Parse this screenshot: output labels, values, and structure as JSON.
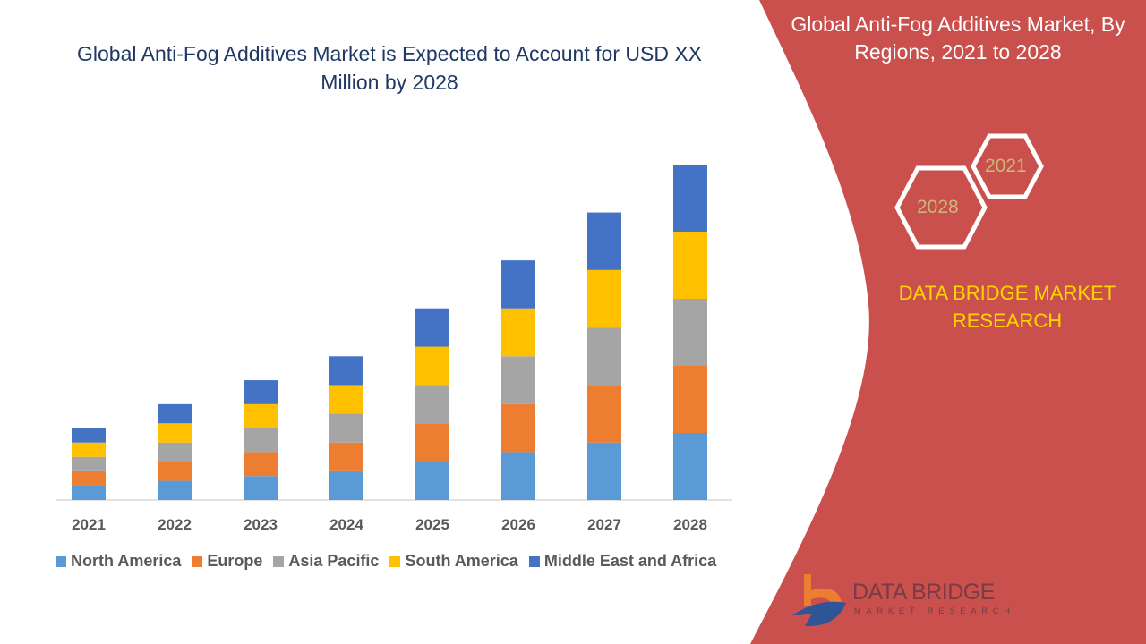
{
  "header": {
    "title": "Global Anti-Fog Additives Market is Expected to Account for USD XX Million by 2028"
  },
  "side_panel": {
    "title": "Global Anti-Fog Additives Market, By Regions, 2021 to 2028",
    "hex_labels": [
      "2021",
      "2028"
    ],
    "brand": "DATA BRIDGE MARKET RESEARCH",
    "panel_color": "#c9504c",
    "brand_color": "#ffd500"
  },
  "logo": {
    "name": "DATA BRIDGE",
    "tagline": "MARKET RESEARCH"
  },
  "chart_data": {
    "type": "bar",
    "stacked": true,
    "title": "Global Anti-Fog Additives Market is Expected to Account for USD XX Million by 2028",
    "xlabel": "",
    "ylabel": "",
    "categories": [
      "2021",
      "2022",
      "2023",
      "2024",
      "2025",
      "2026",
      "2027",
      "2028"
    ],
    "series": [
      {
        "name": "North America",
        "color": "#5b9bd5",
        "values": [
          1.5,
          2,
          2.5,
          3,
          4,
          5,
          6,
          7
        ]
      },
      {
        "name": "Europe",
        "color": "#ed7d31",
        "values": [
          1.5,
          2,
          2.5,
          3,
          4,
          5,
          6,
          7
        ]
      },
      {
        "name": "Asia Pacific",
        "color": "#a5a5a5",
        "values": [
          1.5,
          2,
          2.5,
          3,
          4,
          5,
          6,
          7
        ]
      },
      {
        "name": "South America",
        "color": "#ffc000",
        "values": [
          1.5,
          2,
          2.5,
          3,
          4,
          5,
          6,
          7
        ]
      },
      {
        "name": "Middle East and Africa",
        "color": "#4472c4",
        "values": [
          1.5,
          2,
          2.5,
          3,
          4,
          5,
          6,
          7
        ]
      }
    ],
    "ylim": [
      0,
      35
    ],
    "grid": false,
    "legend": "bottom"
  }
}
